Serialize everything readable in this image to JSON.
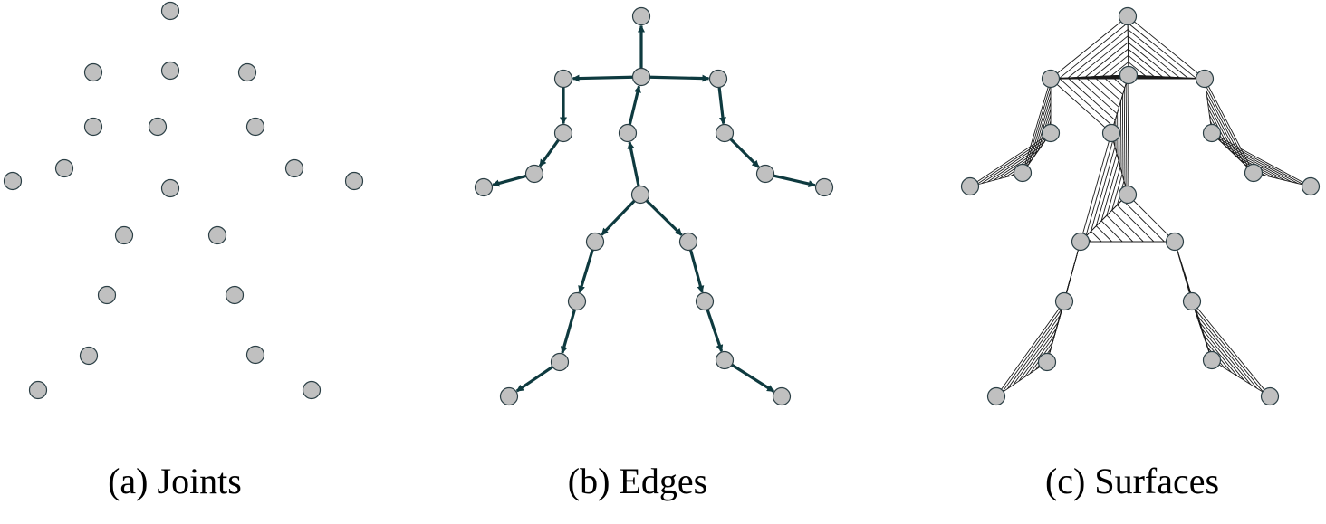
{
  "colors": {
    "joint_fill": "#c0c0c0",
    "joint_stroke": "#2b3f45",
    "edge_color": "#0e3a3f",
    "surface_line_color": "#1a1a1a"
  },
  "panels": [
    {
      "id": "joints",
      "caption": "(a) Joints",
      "joints": [
        [
          188,
          12
        ],
        [
          103,
          80
        ],
        [
          188,
          78
        ],
        [
          273,
          80
        ],
        [
          103,
          140
        ],
        [
          174,
          140
        ],
        [
          282,
          140
        ],
        [
          14,
          200
        ],
        [
          71,
          186
        ],
        [
          188,
          208
        ],
        [
          325,
          186
        ],
        [
          391,
          200
        ],
        [
          137,
          260
        ],
        [
          240,
          260
        ],
        [
          118,
          326
        ],
        [
          259,
          326
        ],
        [
          98,
          393
        ],
        [
          282,
          392
        ],
        [
          42,
          431
        ],
        [
          344,
          431
        ]
      ]
    },
    {
      "id": "edges",
      "caption": "(b) Edges",
      "joints": [
        [
          708,
          18
        ],
        [
          708,
          85
        ],
        [
          622,
          87
        ],
        [
          793,
          87
        ],
        [
          622,
          147
        ],
        [
          693,
          147
        ],
        [
          800,
          147
        ],
        [
          590,
          192
        ],
        [
          845,
          192
        ],
        [
          534,
          207
        ],
        [
          910,
          207
        ],
        [
          707,
          215
        ],
        [
          657,
          267
        ],
        [
          760,
          267
        ],
        [
          637,
          333
        ],
        [
          778,
          333
        ],
        [
          618,
          400
        ],
        [
          800,
          398
        ],
        [
          562,
          438
        ],
        [
          863,
          438
        ]
      ],
      "edges": [
        [
          1,
          0
        ],
        [
          1,
          2
        ],
        [
          1,
          3
        ],
        [
          2,
          4
        ],
        [
          4,
          7
        ],
        [
          7,
          9
        ],
        [
          3,
          6
        ],
        [
          6,
          8
        ],
        [
          8,
          10
        ],
        [
          5,
          1
        ],
        [
          11,
          5
        ],
        [
          11,
          12
        ],
        [
          11,
          13
        ],
        [
          12,
          14
        ],
        [
          14,
          16
        ],
        [
          16,
          18
        ],
        [
          13,
          15
        ],
        [
          15,
          17
        ],
        [
          17,
          19
        ]
      ]
    },
    {
      "id": "surfaces",
      "caption": "(c) Surfaces",
      "joints": [
        [
          1245,
          18
        ],
        [
          1160,
          87
        ],
        [
          1246,
          83
        ],
        [
          1330,
          87
        ],
        [
          1160,
          147
        ],
        [
          1227,
          147
        ],
        [
          1338,
          147
        ],
        [
          1129,
          191
        ],
        [
          1384,
          191
        ],
        [
          1071,
          206
        ],
        [
          1447,
          206
        ],
        [
          1245,
          215
        ],
        [
          1193,
          267
        ],
        [
          1297,
          267
        ],
        [
          1175,
          333
        ],
        [
          1316,
          333
        ],
        [
          1156,
          400
        ],
        [
          1338,
          398
        ],
        [
          1100,
          438
        ],
        [
          1402,
          438
        ]
      ],
      "surfaces": [
        [
          0,
          2,
          1
        ],
        [
          0,
          2,
          3
        ],
        [
          1,
          2,
          3
        ],
        [
          1,
          4,
          7
        ],
        [
          4,
          7,
          9
        ],
        [
          1,
          2,
          5
        ],
        [
          2,
          5,
          11
        ],
        [
          3,
          6,
          8
        ],
        [
          6,
          8,
          10
        ],
        [
          11,
          12,
          13
        ],
        [
          5,
          11,
          12
        ],
        [
          12,
          14,
          16
        ],
        [
          14,
          16,
          18
        ],
        [
          13,
          15,
          17
        ],
        [
          15,
          17,
          19
        ]
      ]
    }
  ]
}
